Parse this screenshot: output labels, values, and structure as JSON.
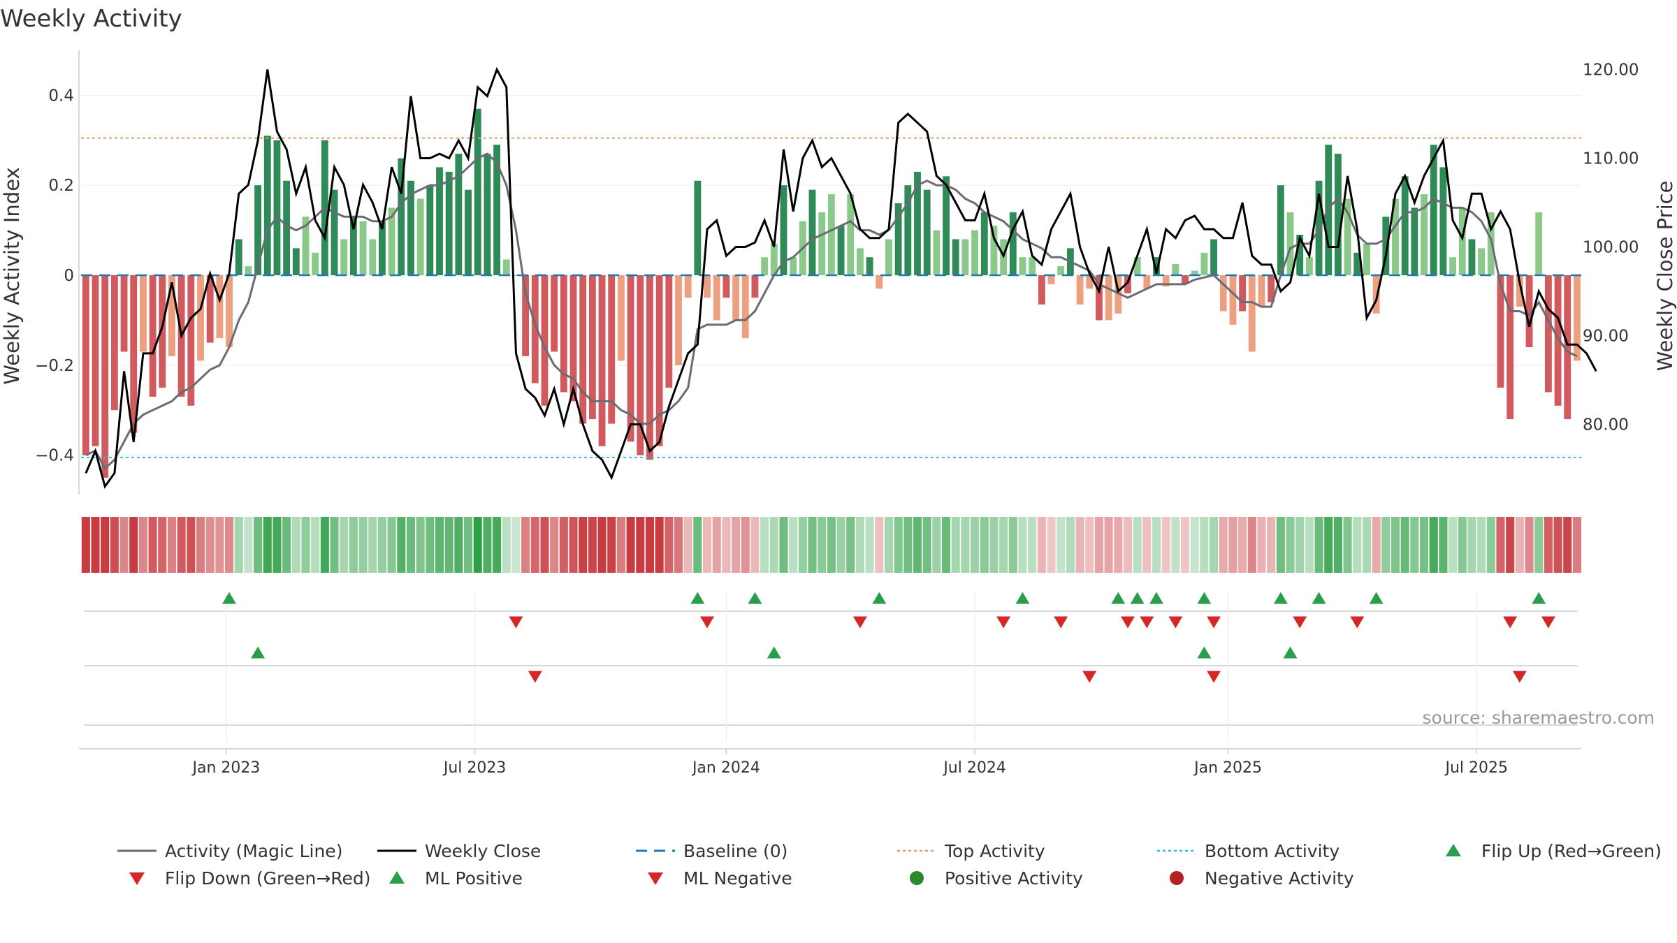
{
  "chart_data": {
    "type": "bar+line",
    "title": "Weekly Activity",
    "ylabel": "Weekly Activity Index",
    "ylabel_right": "Weekly Close Price",
    "source": "source: sharemaestro.com",
    "ylim": [
      -0.5,
      0.5
    ],
    "ylim_right": [
      72,
      121.5
    ],
    "yticks": [
      {
        "value": 0.4,
        "label": "0.4"
      },
      {
        "value": 0.2,
        "label": "0.2"
      },
      {
        "value": 0,
        "label": "0"
      },
      {
        "value": -0.2,
        "label": "−0.2"
      },
      {
        "value": -0.4,
        "label": "−0.4"
      }
    ],
    "yticks_right": [
      {
        "value": 120,
        "label": "120.00"
      },
      {
        "value": 110,
        "label": "110.00"
      },
      {
        "value": 100,
        "label": "100.00"
      },
      {
        "value": 90,
        "label": "90.00"
      },
      {
        "value": 80,
        "label": "80.00"
      }
    ],
    "xticks": [
      {
        "week": 14.7,
        "label": "Jan 2023"
      },
      {
        "week": 40.7,
        "label": "Jul 2023"
      },
      {
        "week": 67,
        "label": "Jan 2024"
      },
      {
        "week": 93,
        "label": "Jul 2024"
      },
      {
        "week": 119.5,
        "label": "Jan 2025"
      },
      {
        "week": 145.5,
        "label": "Jul 2025"
      }
    ],
    "top_activity": 0.305,
    "bottom_activity": -0.405,
    "activity": [
      -0.4,
      -0.38,
      -0.45,
      -0.3,
      -0.17,
      -0.35,
      -0.17,
      -0.27,
      -0.25,
      -0.18,
      -0.27,
      -0.29,
      -0.19,
      -0.15,
      -0.14,
      -0.16,
      0.08,
      0.02,
      0.2,
      0.31,
      0.3,
      0.21,
      0.06,
      0.13,
      0.05,
      0.3,
      0.19,
      0.08,
      0.13,
      0.12,
      0.08,
      0.12,
      0.15,
      0.26,
      0.21,
      0.17,
      0.2,
      0.24,
      0.23,
      0.27,
      0.19,
      0.37,
      0.27,
      0.29,
      0.035,
      0,
      -0.18,
      -0.24,
      -0.29,
      -0.17,
      -0.26,
      -0.28,
      -0.33,
      -0.32,
      -0.38,
      -0.33,
      -0.19,
      -0.37,
      -0.4,
      -0.41,
      -0.38,
      -0.25,
      -0.2,
      -0.05,
      0.21,
      -0.05,
      -0.1,
      -0.05,
      -0.1,
      -0.14,
      -0.05,
      0.04,
      0.07,
      0.2,
      0.04,
      0.12,
      0.19,
      0.14,
      0.18,
      0.11,
      0.18,
      0.06,
      0.04,
      -0.03,
      0.08,
      0.16,
      0.2,
      0.23,
      0.19,
      0.1,
      0.22,
      0.08,
      0.08,
      0.1,
      0.14,
      0.11,
      0.08,
      0.14,
      0.04,
      0.04,
      -0.065,
      -0.02,
      0.02,
      0.06,
      -0.065,
      -0.03,
      -0.1,
      -0.1,
      -0.085,
      -0.04,
      0.04,
      -0.03,
      0.04,
      -0.025,
      0.025,
      -0.02,
      0.01,
      0.05,
      0.08,
      -0.08,
      -0.11,
      -0.08,
      -0.17,
      -0.07,
      -0.06,
      0.2,
      0.14,
      0.09,
      0.04,
      0.21,
      0.29,
      0.27,
      0.17,
      0.05,
      0.07,
      -0.085,
      0.13,
      0.17,
      0.22,
      0.15,
      0.18,
      0.29,
      0.24,
      0.04,
      0.15,
      0.08,
      0.06,
      0.14,
      -0.25,
      -0.32,
      -0.07,
      -0.16,
      0.14,
      -0.26,
      -0.29,
      -0.32,
      -0.19
    ],
    "magic_line": [
      -0.4,
      -0.39,
      -0.43,
      -0.41,
      -0.37,
      -0.33,
      -0.31,
      -0.3,
      -0.29,
      -0.28,
      -0.26,
      -0.25,
      -0.23,
      -0.21,
      -0.2,
      -0.16,
      -0.1,
      -0.06,
      0.02,
      0.1,
      0.13,
      0.11,
      0.1,
      0.11,
      0.13,
      0.15,
      0.14,
      0.13,
      0.13,
      0.13,
      0.12,
      0.12,
      0.13,
      0.16,
      0.18,
      0.19,
      0.2,
      0.2,
      0.21,
      0.22,
      0.24,
      0.26,
      0.27,
      0.25,
      0.2,
      0.1,
      -0.04,
      -0.11,
      -0.16,
      -0.2,
      -0.22,
      -0.23,
      -0.26,
      -0.28,
      -0.28,
      -0.28,
      -0.3,
      -0.31,
      -0.33,
      -0.33,
      -0.31,
      -0.3,
      -0.28,
      -0.25,
      -0.12,
      -0.11,
      -0.11,
      -0.11,
      -0.1,
      -0.1,
      -0.08,
      -0.04,
      0,
      0.03,
      0.04,
      0.06,
      0.08,
      0.09,
      0.1,
      0.11,
      0.12,
      0.1,
      0.1,
      0.09,
      0.1,
      0.13,
      0.16,
      0.2,
      0.21,
      0.2,
      0.2,
      0.19,
      0.17,
      0.16,
      0.14,
      0.13,
      0.12,
      0.1,
      0.08,
      0.07,
      0.06,
      0.04,
      0.04,
      0.03,
      0.02,
      0.01,
      -0.02,
      -0.03,
      -0.04,
      -0.05,
      -0.04,
      -0.03,
      -0.02,
      -0.02,
      -0.02,
      -0.02,
      -0.01,
      -0.005,
      0.0,
      -0.02,
      -0.04,
      -0.06,
      -0.06,
      -0.07,
      -0.07,
      0.0,
      0.06,
      0.07,
      0.07,
      0.1,
      0.15,
      0.17,
      0.14,
      0.09,
      0.07,
      0.07,
      0.08,
      0.11,
      0.14,
      0.14,
      0.15,
      0.17,
      0.16,
      0.15,
      0.15,
      0.14,
      0.12,
      0.08,
      -0.02,
      -0.08,
      -0.08,
      -0.09,
      -0.06,
      -0.1,
      -0.14,
      -0.17,
      -0.18
    ],
    "weekly_close": [
      74.5,
      77,
      73,
      74.5,
      86,
      78,
      88,
      88,
      91,
      96,
      90,
      92,
      93,
      97,
      94,
      97,
      106,
      107,
      112,
      120,
      113,
      111,
      106,
      109,
      103,
      101,
      109,
      107,
      102,
      107,
      105,
      102,
      109,
      106,
      117,
      110,
      110,
      110.5,
      110,
      112,
      110,
      118,
      117,
      120,
      118,
      88,
      84,
      83,
      81,
      84,
      80,
      84,
      80,
      77,
      76,
      74,
      77,
      80,
      80,
      77,
      78,
      82,
      85,
      88,
      89,
      102,
      103,
      99,
      100,
      100,
      100.5,
      103,
      100,
      111,
      104,
      110,
      112,
      109,
      110,
      108,
      106,
      102,
      101,
      101,
      102,
      114,
      115,
      114,
      113,
      108,
      107,
      105,
      103,
      103,
      106,
      101,
      99,
      102,
      104,
      99,
      98,
      102,
      104,
      106,
      100,
      97,
      95,
      100,
      95,
      96,
      99,
      102,
      97,
      102,
      101,
      103,
      103.5,
      102,
      102,
      101,
      101,
      105,
      99,
      98,
      98,
      95,
      96,
      101,
      99,
      106,
      100,
      100,
      108,
      102,
      92,
      94,
      99,
      106,
      108,
      105,
      108,
      110,
      112,
      103,
      101,
      106,
      106,
      102,
      104,
      102,
      96,
      91,
      95,
      93,
      92,
      89,
      89,
      88,
      86
    ],
    "flip_rows": [
      {
        "name": "flip-up",
        "series": "Flip Up (Red→Green)",
        "weeks": [
          15,
          64,
          70,
          83,
          98,
          108,
          110,
          112,
          117,
          125,
          129,
          135,
          152
        ]
      },
      {
        "name": "flip-down",
        "series": "Flip Down (Green→Red)",
        "weeks": [
          45,
          65,
          81,
          96,
          102,
          109,
          111,
          114,
          118,
          127,
          133,
          149,
          153
        ]
      },
      {
        "name": "ml-positive",
        "series": "ML Positive",
        "weeks": [
          18,
          72,
          117,
          126
        ]
      },
      {
        "name": "ml-negative",
        "series": "ML Negative",
        "weeks": [
          47,
          105,
          118,
          150
        ]
      }
    ],
    "legend": [
      {
        "label": "Activity (Magic Line)",
        "kind": "line",
        "color": "#6b6b73"
      },
      {
        "label": "Weekly Close",
        "kind": "line",
        "color": "#000000"
      },
      {
        "label": "Baseline (0)",
        "kind": "dash",
        "color": "#1f77b4"
      },
      {
        "label": "Top Activity",
        "kind": "dot",
        "color": "#e0a060"
      },
      {
        "label": "Bottom Activity",
        "kind": "dot",
        "color": "#22c3d8"
      },
      {
        "label": "Flip Up (Red→Green)",
        "kind": "triangle-up",
        "color": "#2a9d4b"
      },
      {
        "label": "Flip Down (Green→Red)",
        "kind": "triangle-down",
        "color": "#d62728"
      },
      {
        "label": "ML Positive",
        "kind": "triangle-up",
        "color": "#2a9d4b"
      },
      {
        "label": "ML Negative",
        "kind": "triangle-down",
        "color": "#d62728"
      },
      {
        "label": "Positive Activity",
        "kind": "circle",
        "color": "#2a8a2a"
      },
      {
        "label": "Negative Activity",
        "kind": "circle",
        "color": "#b22222"
      }
    ],
    "colors": {
      "positive_strong": "#2e8b57",
      "positive_weak": "#8bc98b",
      "negative_strong": "#d05a5e",
      "negative_weak": "#eca080",
      "grid": "#eeeeee",
      "axis": "#cccccc"
    }
  }
}
